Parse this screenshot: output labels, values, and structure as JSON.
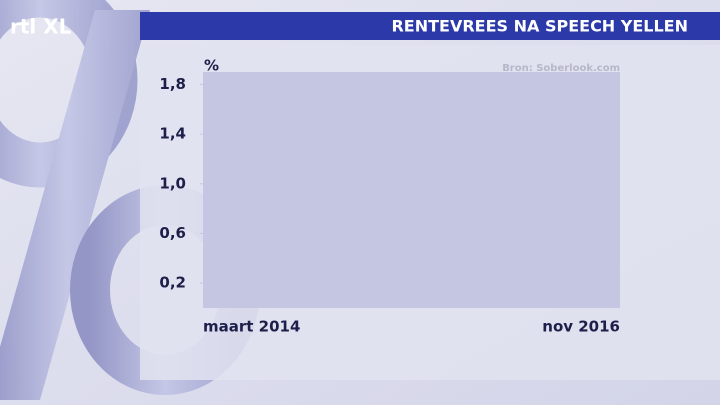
{
  "logo": "rtl XL",
  "chart_data": {
    "type": "line",
    "title": "RENTEVREES NA SPEECH YELLEN",
    "y_unit": "%",
    "source": "Bron: Soberlook.com",
    "categories": [
      "maart 2014",
      "nov 2016"
    ],
    "series": [],
    "ylim": [
      0,
      1.9
    ],
    "yticks": [
      {
        "value": 0.2,
        "label": "0,2"
      },
      {
        "value": 0.6,
        "label": "0,6"
      },
      {
        "value": 1.0,
        "label": "1,0"
      },
      {
        "value": 1.4,
        "label": "1,4"
      },
      {
        "value": 1.8,
        "label": "1,8"
      }
    ],
    "plot_color": "#c4c6e2"
  }
}
